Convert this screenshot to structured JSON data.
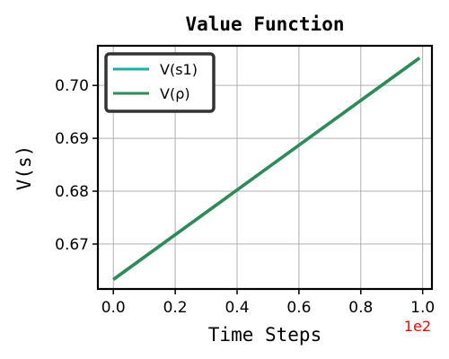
{
  "chart_data": {
    "type": "line",
    "title": "Value Function",
    "xlabel": "Time Steps",
    "ylabel": "V(s)",
    "x_offset_label": "1e2",
    "xlim": [
      -0.05,
      1.03
    ],
    "ylim": [
      0.6615,
      0.7075
    ],
    "xticks": [
      0.0,
      0.2,
      0.4,
      0.6,
      0.8,
      1.0
    ],
    "xtick_labels": [
      "0.0",
      "0.2",
      "0.4",
      "0.6",
      "0.8",
      "1.0"
    ],
    "yticks": [
      0.67,
      0.68,
      0.69,
      0.7
    ],
    "ytick_labels": [
      "0.67",
      "0.68",
      "0.69",
      "0.70"
    ],
    "grid": true,
    "legend_position": "top-left",
    "series": [
      {
        "name": "V(s1)",
        "color": "#1aada0",
        "x": [
          0.0,
          0.99
        ],
        "y": [
          0.6633,
          0.7052
        ]
      },
      {
        "name": "V(ρ)",
        "color": "#2e8b57",
        "x": [
          0.0,
          0.99
        ],
        "y": [
          0.6633,
          0.7052
        ]
      }
    ],
    "colors": {
      "offset_label": "#ff0000"
    }
  }
}
